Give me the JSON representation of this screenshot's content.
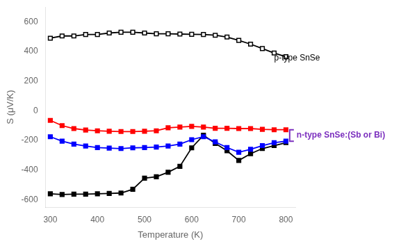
{
  "chart_data": {
    "type": "line",
    "x_label": "Temperature (K)",
    "y_label": "S (μV/K)",
    "x": [
      300,
      325,
      350,
      375,
      400,
      425,
      450,
      475,
      500,
      525,
      550,
      575,
      600,
      625,
      650,
      675,
      700,
      725,
      750,
      775,
      800
    ],
    "series": [
      {
        "color": "#000000",
        "marker": "square_open",
        "values": [
          490,
          505,
          505,
          515,
          515,
          525,
          530,
          530,
          525,
          520,
          520,
          518,
          516,
          515,
          510,
          498,
          475,
          450,
          420,
          390,
          365
        ]
      },
      {
        "color": "#ff0000",
        "marker": "square",
        "values": [
          -65,
          -100,
          -120,
          -130,
          -135,
          -138,
          -140,
          -140,
          -138,
          -135,
          -115,
          -110,
          -105,
          -110,
          -118,
          -118,
          -120,
          -120,
          -125,
          -128,
          -128
        ]
      },
      {
        "color": "#0000ff",
        "marker": "square",
        "values": [
          -175,
          -205,
          -225,
          -238,
          -248,
          -252,
          -255,
          -250,
          -248,
          -245,
          -238,
          -225,
          -195,
          -175,
          -210,
          -248,
          -280,
          -260,
          -235,
          -215,
          -205
        ]
      },
      {
        "color": "#000000",
        "marker": "square",
        "values": [
          -560,
          -565,
          -563,
          -563,
          -560,
          -558,
          -555,
          -530,
          -455,
          -445,
          -415,
          -375,
          -250,
          -165,
          -220,
          -270,
          -335,
          -290,
          -255,
          -235,
          -215
        ]
      }
    ],
    "xlim": [
      290,
      820
    ],
    "ylim": [
      -650,
      700
    ],
    "xticks": [
      300,
      400,
      500,
      600,
      700,
      800
    ],
    "yticks": [
      -600,
      -400,
      -200,
      0,
      200,
      400,
      600
    ],
    "grid": false,
    "annotations": [
      {
        "text": "p-type SnSe",
        "x": 775,
        "y": 395,
        "color": "#000000"
      },
      {
        "text": "n-type SnSe:(Sb or Bi)",
        "x": 808,
        "span": [
          -205,
          -128
        ],
        "color": "#7B2FBE"
      }
    ]
  }
}
